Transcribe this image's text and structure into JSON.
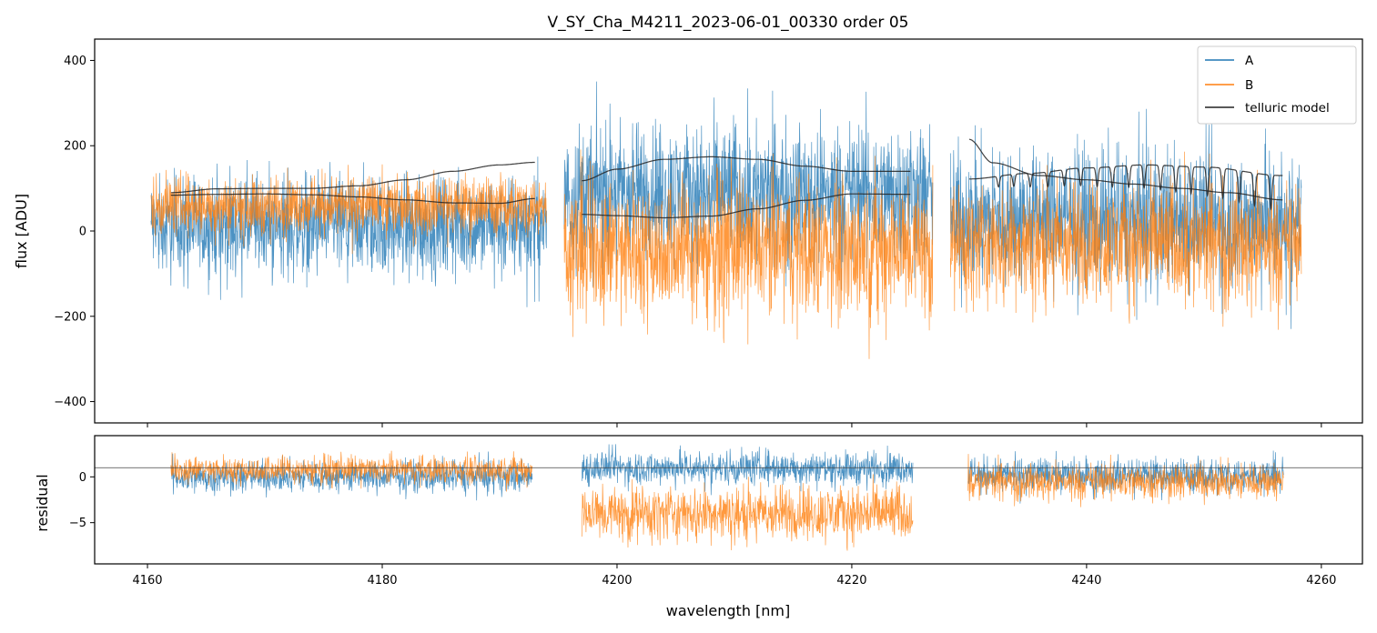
{
  "chart_data": [
    {
      "type": "line",
      "panel": "top",
      "title": "V_SY_Cha_M4211_2023-06-01_00330  order 05",
      "xlabel": "",
      "ylabel": "flux [ADU]",
      "xlim": [
        4155.5,
        4263.5
      ],
      "ylim": [
        -450,
        450
      ],
      "yticks": [
        -400,
        -200,
        0,
        200,
        400
      ],
      "ytick_labels": [
        "−400",
        "−200",
        "0",
        "200",
        "400"
      ],
      "xticks": [
        4160,
        4180,
        4200,
        4220,
        4240,
        4260
      ],
      "colors": {
        "A": "#1f77b4",
        "B": "#ff7f0e",
        "telluric": "#222222"
      },
      "legend": {
        "placement": "top-right",
        "entries": [
          "A",
          "B",
          "telluric model"
        ]
      },
      "segments": [
        {
          "x_range": [
            4160.3,
            4194.0
          ],
          "A_center": 10,
          "A_amp": 190,
          "B_center": 60,
          "B_amp": 110
        },
        {
          "x_range": [
            4195.5,
            4226.9
          ],
          "A_center": 90,
          "A_amp": 260,
          "B_center": -40,
          "B_amp": 260
        },
        {
          "x_range": [
            4228.4,
            4258.3
          ],
          "A_center": 30,
          "A_amp": 260,
          "B_center": -30,
          "B_amp": 230
        }
      ],
      "series": [
        {
          "name": "telluric model (A)",
          "segment": 1,
          "x": [
            4162,
            4166,
            4170,
            4174,
            4178,
            4182,
            4186,
            4190,
            4193
          ],
          "values": [
            90,
            99,
            100,
            100,
            106,
            120,
            140,
            155,
            161
          ]
        },
        {
          "name": "telluric model (B)",
          "segment": 1,
          "x": [
            4162,
            4166,
            4170,
            4174,
            4178,
            4182,
            4186,
            4190,
            4193
          ],
          "values": [
            84,
            86,
            87,
            85,
            80,
            73,
            66,
            65,
            76
          ]
        },
        {
          "name": "telluric model (A)",
          "segment": 2,
          "x": [
            4197,
            4200,
            4204,
            4208,
            4212,
            4216,
            4220,
            4225
          ],
          "values": [
            118,
            145,
            168,
            174,
            168,
            152,
            140,
            140
          ]
        },
        {
          "name": "telluric model (B)",
          "segment": 2,
          "x": [
            4197,
            4200,
            4204,
            4208,
            4212,
            4216,
            4220,
            4225
          ],
          "values": [
            39,
            36,
            31,
            35,
            52,
            72,
            87,
            86
          ]
        },
        {
          "name": "telluric model (A)",
          "segment": 3,
          "x": [
            4230,
            4232,
            4236,
            4240,
            4244,
            4248,
            4252,
            4256.7
          ],
          "values": [
            215,
            160,
            130,
            120,
            110,
            100,
            90,
            73
          ]
        },
        {
          "name": "telluric model (B)",
          "segment": 3,
          "x": [
            4230,
            4235,
            4240,
            4245,
            4250,
            4256.7
          ],
          "values": [
            122,
            135,
            148,
            155,
            150,
            130
          ]
        }
      ],
      "absorption_lines_nm": [
        4232.5,
        4233.8,
        4235.2,
        4236.7,
        4238.1,
        4239.5,
        4240.9,
        4242.2,
        4243.6,
        4244.9,
        4246.3,
        4247.6,
        4248.9,
        4250.3,
        4251.6,
        4253.0,
        4254.3,
        4255.7
      ]
    },
    {
      "type": "line",
      "panel": "bottom",
      "title": "",
      "xlabel": "wavelength [nm]",
      "ylabel": "residual",
      "xlim": [
        4155.5,
        4263.5
      ],
      "ylim": [
        -9.5,
        4.5
      ],
      "yticks": [
        -5,
        0
      ],
      "ytick_labels": [
        "−5",
        "0"
      ],
      "xticks": [
        4160,
        4180,
        4200,
        4220,
        4240,
        4260
      ],
      "xtick_labels": [
        "4160",
        "4180",
        "4200",
        "4220",
        "4240",
        "4260"
      ],
      "reference_line_y": 1,
      "segments": [
        {
          "x_range": [
            4162.0,
            4192.8
          ],
          "A_center": 0,
          "A_amp": 2.8,
          "B_center": 0.8,
          "B_amp": 2.4
        },
        {
          "x_range": [
            4197.0,
            4225.2
          ],
          "A_center": 1,
          "A_amp": 3.0,
          "B_center": -4,
          "B_amp": 5.0
        },
        {
          "x_range": [
            4229.9,
            4256.8
          ],
          "A_center": 0.2,
          "A_amp": 3.0,
          "B_center": -0.5,
          "B_amp": 3.2
        }
      ]
    }
  ]
}
